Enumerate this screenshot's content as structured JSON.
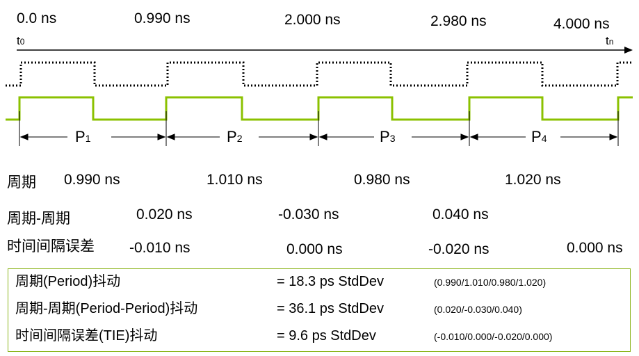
{
  "time_labels": [
    "0.0 ns",
    "0.990 ns",
    "2.000 ns",
    "2.980 ns",
    "4.000 ns"
  ],
  "t0": "t",
  "t0_sub": "0",
  "tn": "t",
  "tn_sub": "n",
  "periods": [
    {
      "base": "P",
      "sub": "1"
    },
    {
      "base": "P",
      "sub": "2"
    },
    {
      "base": "P",
      "sub": "3"
    },
    {
      "base": "P",
      "sub": "4"
    }
  ],
  "rows": {
    "period": {
      "label": "周期",
      "values": [
        "0.990 ns",
        "1.010 ns",
        "0.980 ns",
        "1.020 ns"
      ]
    },
    "cycle": {
      "label": "周期-周期",
      "values": [
        "0.020 ns",
        "-0.030 ns",
        "0.040 ns"
      ]
    },
    "tie": {
      "label": "时间间隔误差",
      "values": [
        "-0.010 ns",
        "0.000 ns",
        "-0.020 ns",
        "0.000 ns"
      ]
    }
  },
  "summary": [
    {
      "name": "周期(Period)抖动",
      "eq": "= 18.3 ps StdDev",
      "detail": "(0.990/1.010/0.980/1.020)"
    },
    {
      "name": "周期-周期(Period-Period)抖动",
      "eq": "= 36.1 ps StdDev",
      "detail": "(0.020/-0.030/0.040)"
    },
    {
      "name": "时间间隔误差(TIE)抖动",
      "eq": "=  9.6 ps StdDev",
      "detail": "(-0.010/0.000/-0.020/0.000)"
    }
  ],
  "colors": {
    "signal": "#8bc100",
    "reference": "#000000",
    "box": "#8bb51b"
  }
}
